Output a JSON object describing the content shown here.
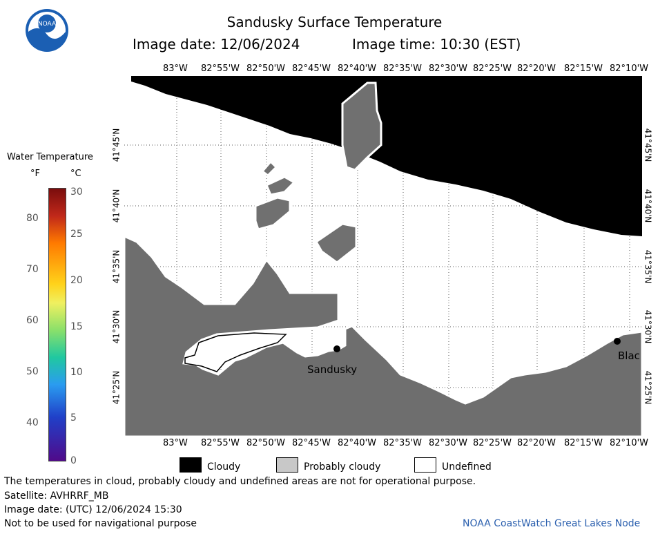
{
  "title": "Sandusky Surface Temperature",
  "subtitle_date": "Image date: 12/06/2024",
  "subtitle_time": "Image time: 10:30 (EST)",
  "logo_text": "NOAA",
  "lon_ticks": [
    "83°W",
    "82°55'W",
    "82°50'W",
    "82°45'W",
    "82°40'W",
    "82°35'W",
    "82°30'W",
    "82°25'W",
    "82°20'W",
    "82°15'W",
    "82°10'W"
  ],
  "lat_ticks": [
    "41°45'N",
    "41°40'N",
    "41°35'N",
    "41°30'N",
    "41°25'N"
  ],
  "colorbar": {
    "title": "Water Temperature",
    "unit_f": "°F",
    "unit_c": "°C",
    "f_ticks": [
      "80",
      "70",
      "60",
      "50",
      "40"
    ],
    "c_ticks": [
      "30",
      "25",
      "20",
      "15",
      "10",
      "5",
      "0"
    ]
  },
  "places": {
    "sandusky": "Sandusky",
    "blac": "Blac"
  },
  "legend": {
    "cloudy": "Cloudy",
    "probably_cloudy": "Probably cloudy",
    "undefined": "Undefined"
  },
  "footer": {
    "disclaimer": "The temperatures in cloud, probably cloudy and undefined areas are not for operational purpose.",
    "satellite": "Satellite: AVHRRF_MB",
    "utc_date": "Image date: (UTC) 12/06/2024  15:30",
    "nav_warning": "Not to be used for navigational purpose",
    "credit": "NOAA CoastWatch Great Lakes Node"
  },
  "colors": {
    "cloudy": "#000000",
    "land": "#6e6e6e",
    "probably_cloudy": "#c8c8c8",
    "undefined": "#ffffff",
    "credit": "#2a5fae"
  }
}
